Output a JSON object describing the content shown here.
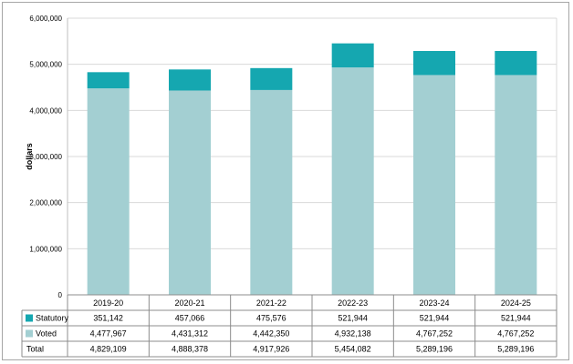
{
  "chart_data": {
    "type": "bar",
    "stacked": true,
    "title": "",
    "xlabel": "",
    "ylabel": "dollars",
    "ylim": [
      0,
      6000000
    ],
    "ytick_labels": [
      "0",
      "1,000,000",
      "2,000,000",
      "3,000,000",
      "4,000,000",
      "5,000,000",
      "6,000,000"
    ],
    "ytick_values": [
      0,
      1000000,
      2000000,
      3000000,
      4000000,
      5000000,
      6000000
    ],
    "categories": [
      "2019-20",
      "2020-21",
      "2021-22",
      "2022-23",
      "2023-24",
      "2024-25"
    ],
    "series": [
      {
        "name": "Voted",
        "color": "#a3cfd2",
        "values": [
          4477967,
          4431312,
          4442350,
          4932138,
          4767252,
          4767252
        ]
      },
      {
        "name": "Statutory",
        "color": "#15a7b0",
        "values": [
          351142,
          457066,
          475576,
          521944,
          521944,
          521944
        ]
      }
    ],
    "grid": true,
    "legend": "data-table",
    "table": {
      "rows": [
        {
          "label": "Statutory",
          "color": "#15a7b0",
          "cells": [
            "351,142",
            "457,066",
            "475,576",
            "521,944",
            "521,944",
            "521,944"
          ]
        },
        {
          "label": "Voted",
          "color": "#a3cfd2",
          "cells": [
            "4,477,967",
            "4,431,312",
            "4,442,350",
            "4,932,138",
            "4,767,252",
            "4,767,252"
          ]
        },
        {
          "label": "Total",
          "color": "",
          "cells": [
            "4,829,109",
            "4,888,378",
            "4,917,926",
            "5,454,082",
            "5,289,196",
            "5,289,196"
          ]
        }
      ]
    }
  }
}
